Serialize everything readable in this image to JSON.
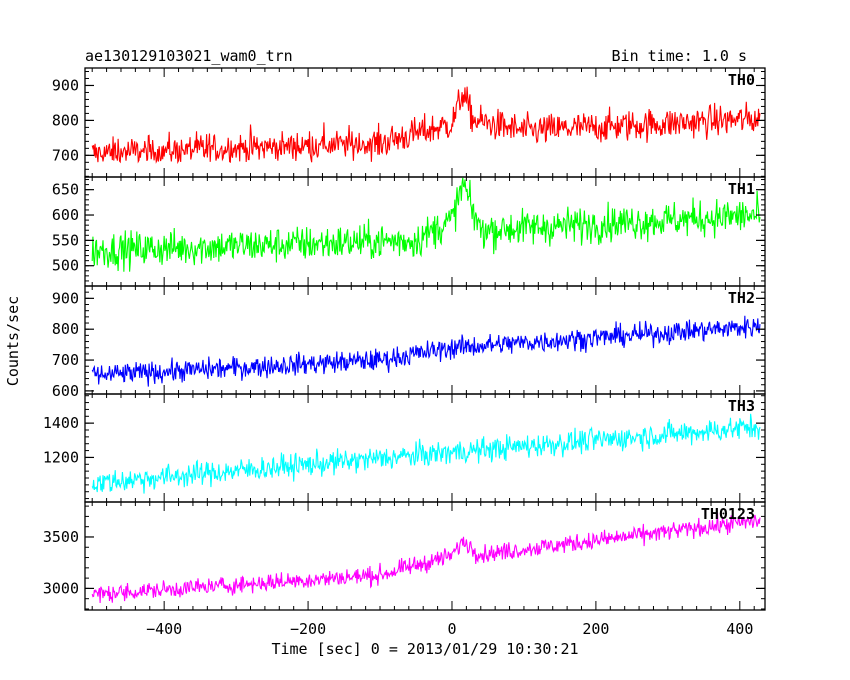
{
  "chart_data": {
    "type": "line",
    "title": "ae130129103021_wam0_trn",
    "bin_time": "Bin time: 1.0 s",
    "xlabel": "Time [sec] 0 = 2013/01/29 10:30:21",
    "ylabel": "Counts/sec",
    "xlim": [
      -510,
      435
    ],
    "data_range": [
      -500,
      428
    ],
    "xticks": [
      -400,
      -200,
      0,
      200,
      400
    ],
    "grid": false,
    "panels": [
      {
        "name": "TH0",
        "color": "#ff0000",
        "ylim": [
          638,
          950
        ],
        "yticks": [
          700,
          800,
          900
        ],
        "trend": [
          [
            -500,
            705
          ],
          [
            -100,
            735
          ],
          [
            0,
            790
          ],
          [
            15,
            880
          ],
          [
            30,
            800
          ],
          [
            100,
            770
          ],
          [
            428,
            805
          ]
        ],
        "noise": 45,
        "y_min": 680,
        "y_max": 950
      },
      {
        "name": "TH1",
        "color": "#00ff00",
        "ylim": [
          460,
          675
        ],
        "yticks": [
          500,
          550,
          600,
          650
        ],
        "trend": [
          [
            -500,
            530
          ],
          [
            -50,
            550
          ],
          [
            0,
            590
          ],
          [
            15,
            660
          ],
          [
            40,
            570
          ],
          [
            428,
            600
          ]
        ],
        "noise": 35,
        "y_min": 470,
        "y_max": 675
      },
      {
        "name": "TH2",
        "color": "#0000ff",
        "ylim": [
          590,
          940
        ],
        "yticks": [
          600,
          700,
          800,
          900
        ],
        "trend": [
          [
            -500,
            650
          ],
          [
            -100,
            700
          ],
          [
            0,
            740
          ],
          [
            428,
            810
          ]
        ],
        "noise": 35,
        "y_min": 610,
        "y_max": 935
      },
      {
        "name": "TH3",
        "color": "#00ffff",
        "ylim": [
          940,
          1570
        ],
        "yticks": [
          1200,
          1400
        ],
        "trend": [
          [
            -500,
            1050
          ],
          [
            0,
            1230
          ],
          [
            428,
            1380
          ]
        ],
        "noise": 70,
        "y_min": 970,
        "y_max": 1560
      },
      {
        "name": "TH0123",
        "color": "#ff00ff",
        "ylim": [
          2790,
          3840
        ],
        "yticks": [
          3000,
          3500
        ],
        "trend": [
          [
            -500,
            2940
          ],
          [
            -100,
            3130
          ],
          [
            0,
            3320
          ],
          [
            15,
            3460
          ],
          [
            40,
            3330
          ],
          [
            428,
            3660
          ]
        ],
        "noise": 85,
        "y_min": 2850,
        "y_max": 3820
      }
    ]
  }
}
